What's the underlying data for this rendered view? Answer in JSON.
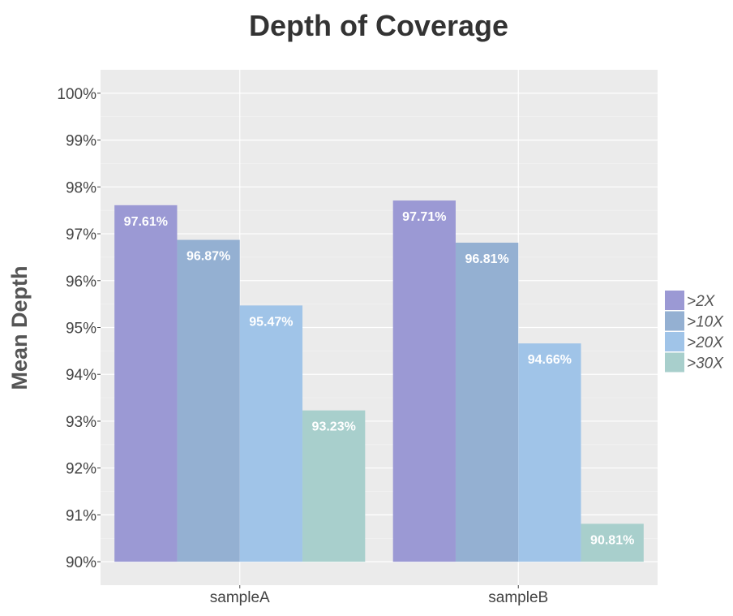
{
  "chart_data": {
    "type": "bar",
    "title": "Depth of Coverage",
    "xlabel": "",
    "ylabel": "Mean Depth",
    "categories": [
      "sampleA",
      "sampleB"
    ],
    "series": [
      {
        "name": ">2X",
        "values": [
          97.61,
          97.71
        ],
        "labels": [
          "97.61%",
          "97.71%"
        ],
        "color": "#9b99d4"
      },
      {
        "name": ">10X",
        "values": [
          96.87,
          96.81
        ],
        "labels": [
          "96.87%",
          "96.81%"
        ],
        "color": "#94b0d2"
      },
      {
        "name": ">20X",
        "values": [
          95.47,
          94.66
        ],
        "labels": [
          "95.47%",
          "94.66%"
        ],
        "color": "#a0c4e8"
      },
      {
        "name": ">30X",
        "values": [
          93.23,
          90.81
        ],
        "labels": [
          "93.23%",
          "90.81%"
        ],
        "color": "#a8cfcc"
      }
    ],
    "ylim": [
      89.5,
      100.5
    ],
    "yticks": [
      90,
      91,
      92,
      93,
      94,
      95,
      96,
      97,
      98,
      99,
      100
    ],
    "ytick_labels": [
      "90%",
      "91%",
      "92%",
      "93%",
      "94%",
      "95%",
      "96%",
      "97%",
      "98%",
      "99%",
      "100%"
    ],
    "bar_baseline": 90,
    "grid": true,
    "legend_position": "right",
    "panel_background": "#ebebeb"
  }
}
